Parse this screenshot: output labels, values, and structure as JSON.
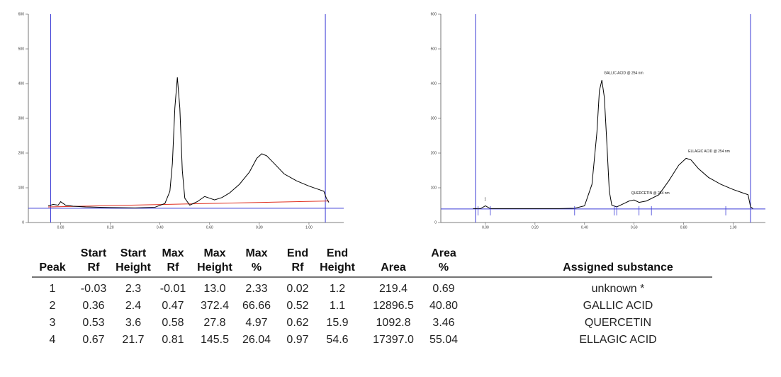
{
  "chart_data": [
    {
      "type": "line",
      "xlim": [
        -0.13,
        1.14
      ],
      "ylim": [
        0,
        600
      ],
      "xticks": [
        {
          "value": 0,
          "label": "0.00"
        },
        {
          "value": 0.2,
          "label": "0.20"
        },
        {
          "value": 0.4,
          "label": "0.40"
        },
        {
          "value": 0.6,
          "label": "0.60"
        },
        {
          "value": 0.8,
          "label": "0.80"
        },
        {
          "value": 1,
          "label": "1.00"
        }
      ],
      "yticks": [
        0,
        100,
        200,
        300,
        400,
        500,
        600
      ],
      "series": [
        {
          "color": "#000000",
          "x": [
            -0.05,
            -0.03,
            -0.01,
            0.0,
            0.02,
            0.05,
            0.1,
            0.2,
            0.3,
            0.38,
            0.42,
            0.44,
            0.45,
            0.46,
            0.47,
            0.48,
            0.49,
            0.5,
            0.52,
            0.55,
            0.58,
            0.6,
            0.62,
            0.65,
            0.68,
            0.72,
            0.76,
            0.79,
            0.81,
            0.83,
            0.86,
            0.9,
            0.95,
            1.0,
            1.04,
            1.06,
            1.07,
            1.08
          ],
          "values": [
            48,
            52,
            50,
            60,
            50,
            47,
            45,
            43,
            42,
            44,
            55,
            90,
            170,
            330,
            418,
            330,
            150,
            70,
            50,
            60,
            75,
            70,
            65,
            72,
            85,
            110,
            145,
            185,
            198,
            192,
            170,
            140,
            120,
            105,
            95,
            90,
            70,
            58
          ]
        }
      ],
      "baseline": {
        "color": "#e03020",
        "x": [
          -0.05,
          1.08
        ],
        "values": [
          45,
          62
        ]
      },
      "vlines": [
        -0.04,
        1.066
      ],
      "hline": 41,
      "line_color": "#3a3ad6",
      "annotations": []
    },
    {
      "type": "line",
      "xlim": [
        -0.18,
        1.13
      ],
      "ylim": [
        0,
        600
      ],
      "xticks": [
        {
          "value": 0,
          "label": "0.00"
        },
        {
          "value": 0.2,
          "label": "0.20"
        },
        {
          "value": 0.4,
          "label": "0.40"
        },
        {
          "value": 0.6,
          "label": "0.60"
        },
        {
          "value": 0.8,
          "label": "0.80"
        },
        {
          "value": 1,
          "label": "1.00"
        }
      ],
      "yticks": [
        0,
        100,
        200,
        300,
        400,
        500,
        600
      ],
      "series": [
        {
          "color": "#000000",
          "x": [
            -0.05,
            -0.02,
            0.0,
            0.02,
            0.05,
            0.1,
            0.2,
            0.3,
            0.36,
            0.4,
            0.43,
            0.45,
            0.46,
            0.47,
            0.48,
            0.49,
            0.5,
            0.51,
            0.53,
            0.56,
            0.58,
            0.6,
            0.62,
            0.65,
            0.7,
            0.74,
            0.78,
            0.81,
            0.83,
            0.86,
            0.9,
            0.95,
            1.0,
            1.04,
            1.06,
            1.07,
            1.08
          ],
          "values": [
            40,
            40,
            48,
            40,
            40,
            40,
            40,
            40,
            41,
            48,
            110,
            260,
            380,
            410,
            360,
            230,
            90,
            50,
            45,
            55,
            62,
            65,
            58,
            62,
            80,
            120,
            165,
            185,
            180,
            155,
            130,
            110,
            95,
            85,
            80,
            45,
            40
          ]
        }
      ],
      "vlines": [
        -0.04,
        1.07
      ],
      "hline": 39,
      "line_color": "#3a3ad6",
      "annotations": [
        "1",
        "GALLIC ACID @ 254 nm",
        "QUERCETIN @ 254 nm",
        "ELLAGIC ACID @ 254 nm"
      ]
    }
  ],
  "table": {
    "header": [
      [
        "Peak"
      ],
      [
        "Start",
        "Rf"
      ],
      [
        "Start",
        "Height"
      ],
      [
        "Max",
        "Rf"
      ],
      [
        "Max",
        "Height"
      ],
      [
        "Max",
        "%"
      ],
      [
        "End",
        "Rf"
      ],
      [
        "End",
        "Height"
      ],
      [
        "Area"
      ],
      [
        "Area",
        "%"
      ],
      [
        "Assigned substance"
      ]
    ],
    "rows": [
      [
        "1",
        "-0.03",
        "2.3",
        "-0.01",
        "13.0",
        "2.33",
        "0.02",
        "1.2",
        "219.4",
        "0.69",
        "unknown *"
      ],
      [
        "2",
        "0.36",
        "2.4",
        "0.47",
        "372.4",
        "66.66",
        "0.52",
        "1.1",
        "12896.5",
        "40.80",
        "GALLIC ACID"
      ],
      [
        "3",
        "0.53",
        "3.6",
        "0.58",
        "27.8",
        "4.97",
        "0.62",
        "15.9",
        "1092.8",
        "3.46",
        "QUERCETIN"
      ],
      [
        "4",
        "0.67",
        "21.7",
        "0.81",
        "145.5",
        "26.04",
        "0.97",
        "54.6",
        "17397.0",
        "55.04",
        "ELLAGIC ACID"
      ]
    ]
  }
}
